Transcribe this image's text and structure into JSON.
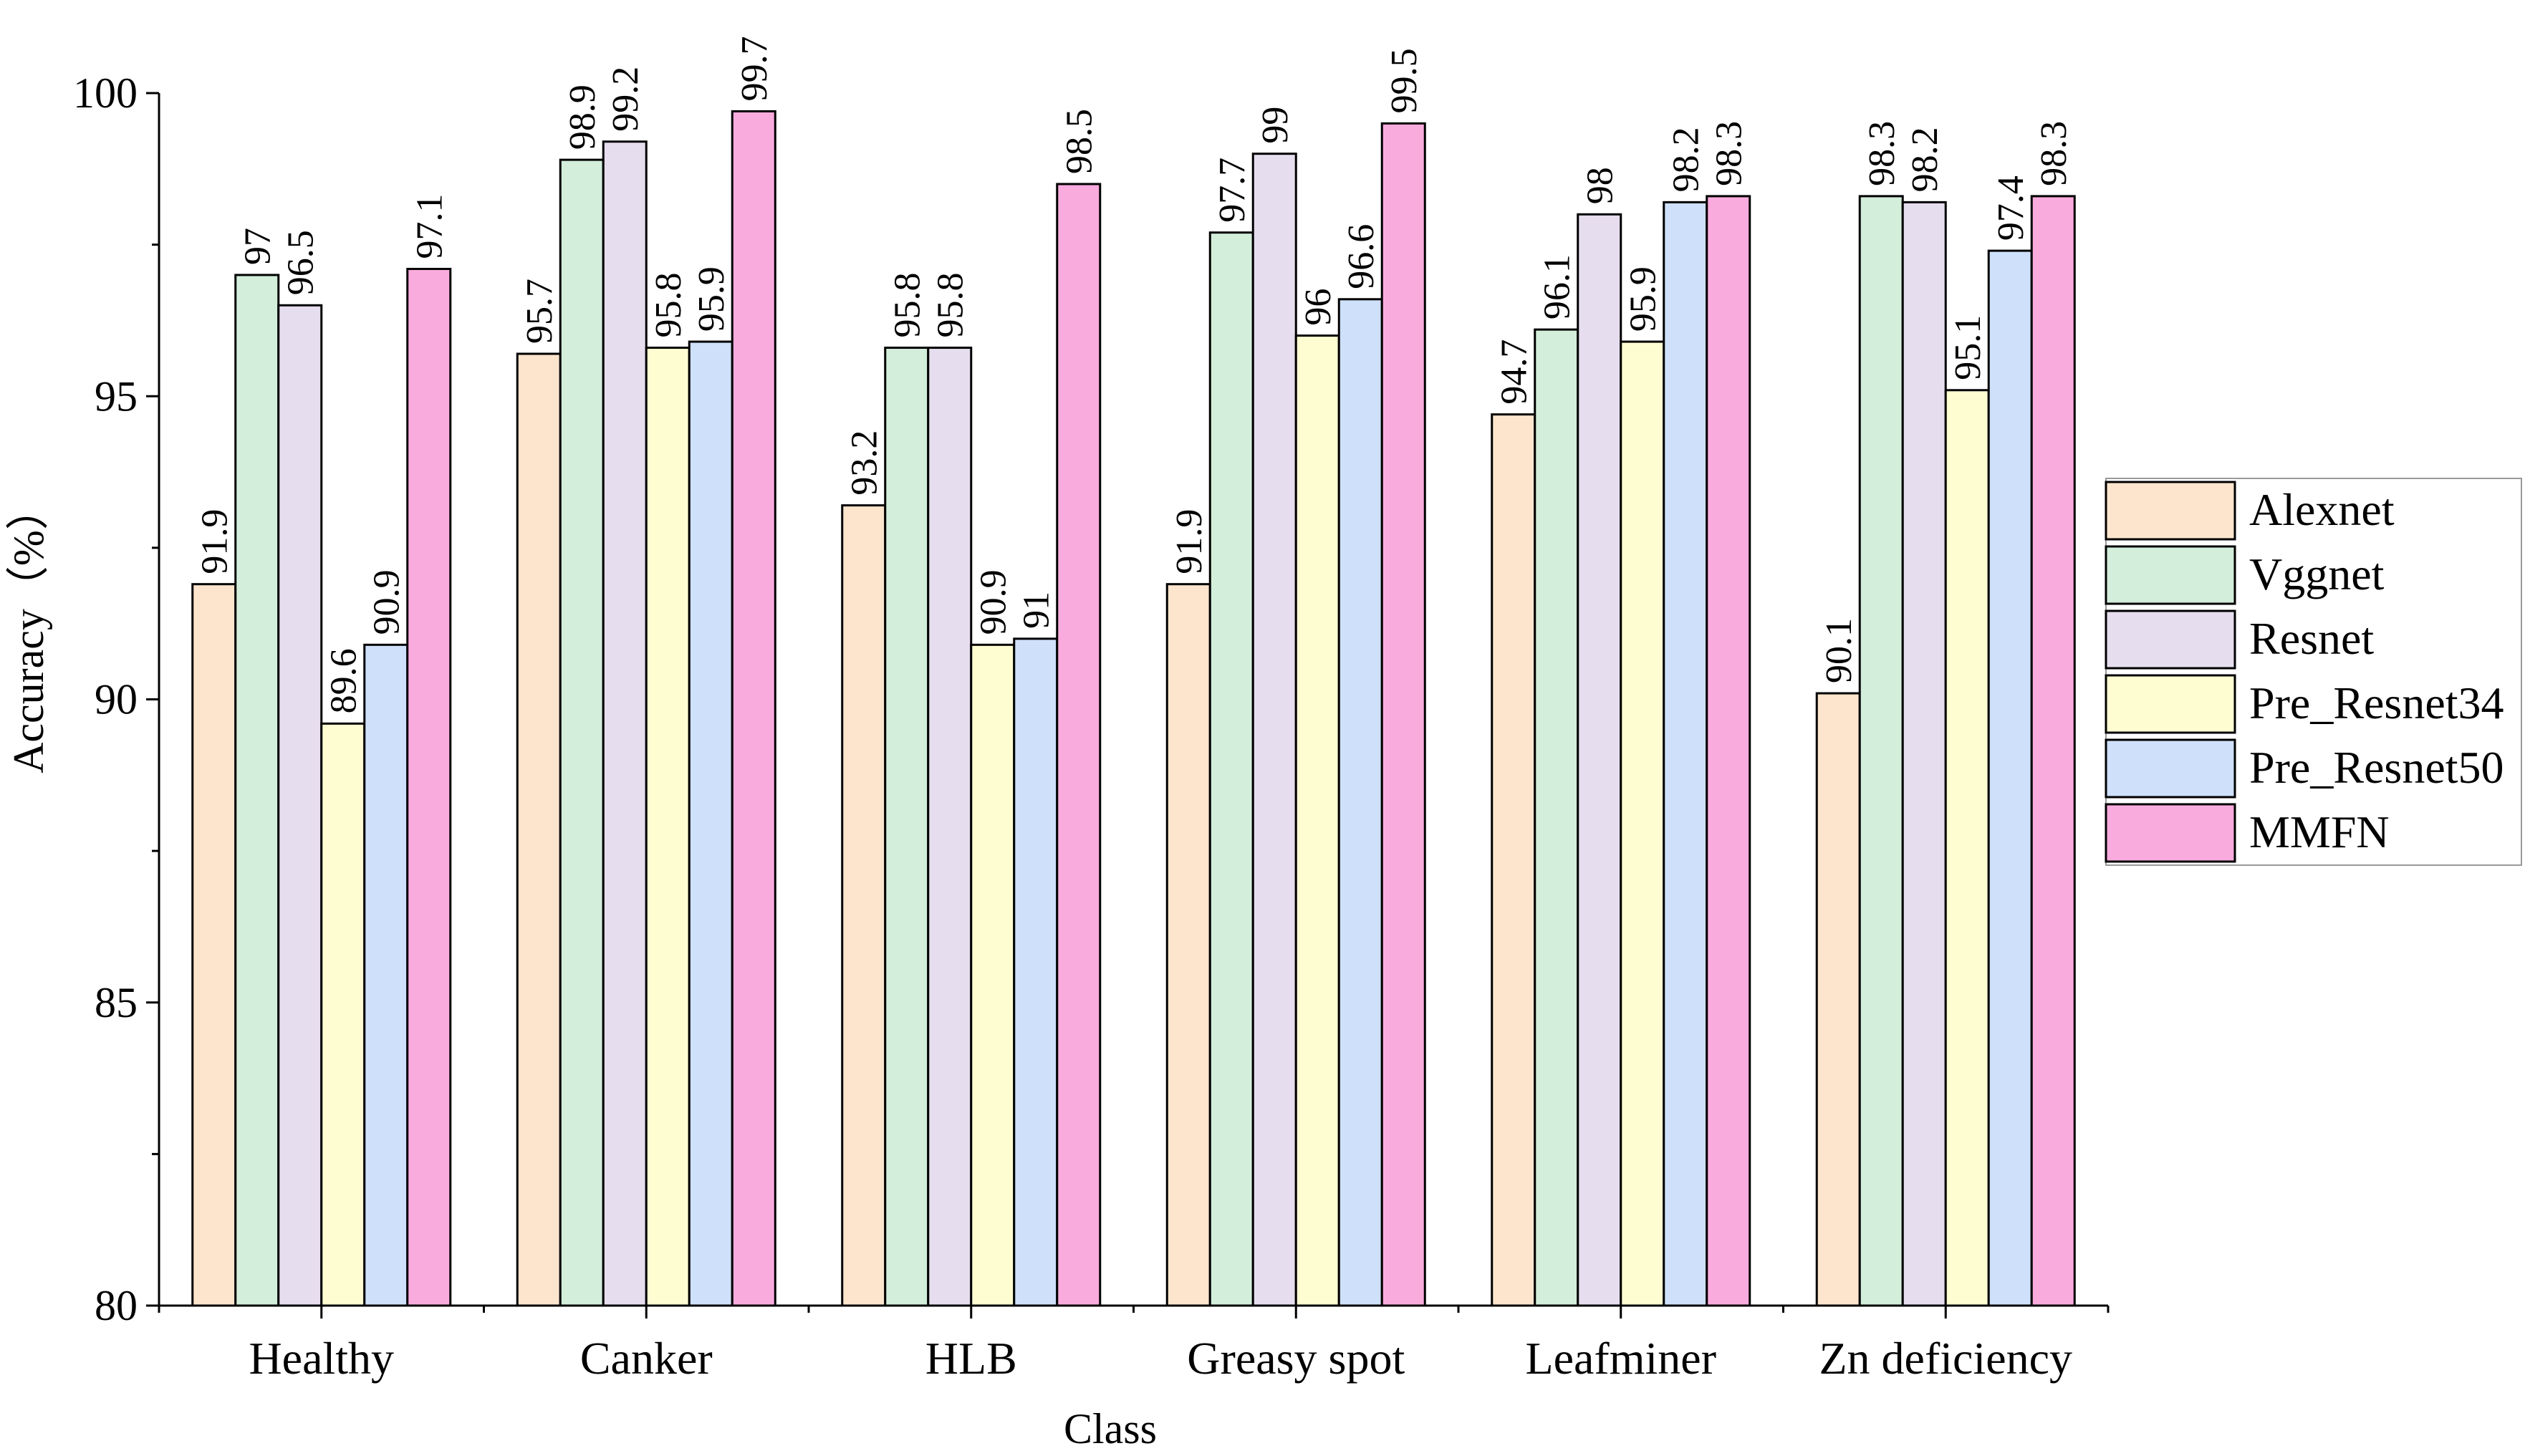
{
  "chart_data": {
    "type": "bar",
    "title": "",
    "xlabel": "Class",
    "ylabel": "Accuracy（%）",
    "ylim": [
      80,
      100
    ],
    "yticks": [
      80,
      85,
      90,
      95,
      100
    ],
    "categories": [
      "Healthy",
      "Canker",
      "HLB",
      "Greasy spot",
      "Leafminer",
      "Zn deficiency"
    ],
    "legend_position": "right",
    "series": [
      {
        "name": "Alexnet",
        "color": "#FDE5CD",
        "values": [
          91.9,
          95.7,
          93.2,
          91.9,
          94.7,
          90.1
        ]
      },
      {
        "name": "Vggnet",
        "color": "#D3EEDB",
        "values": [
          97,
          98.9,
          95.8,
          97.7,
          96.1,
          98.3
        ]
      },
      {
        "name": "Resnet",
        "color": "#E6DDEE",
        "values": [
          96.5,
          99.2,
          95.8,
          99,
          98,
          98.2
        ]
      },
      {
        "name": "Pre_Resnet34",
        "color": "#FEFDD2",
        "values": [
          89.6,
          95.8,
          90.9,
          96,
          95.9,
          95.1
        ]
      },
      {
        "name": "Pre_Resnet50",
        "color": "#CFE0FA",
        "values": [
          90.9,
          95.9,
          91,
          96.6,
          98.2,
          97.4
        ]
      },
      {
        "name": "MMFN",
        "color": "#FAABDD",
        "values": [
          97.1,
          99.7,
          98.5,
          99.5,
          98.3,
          98.3
        ]
      }
    ]
  }
}
